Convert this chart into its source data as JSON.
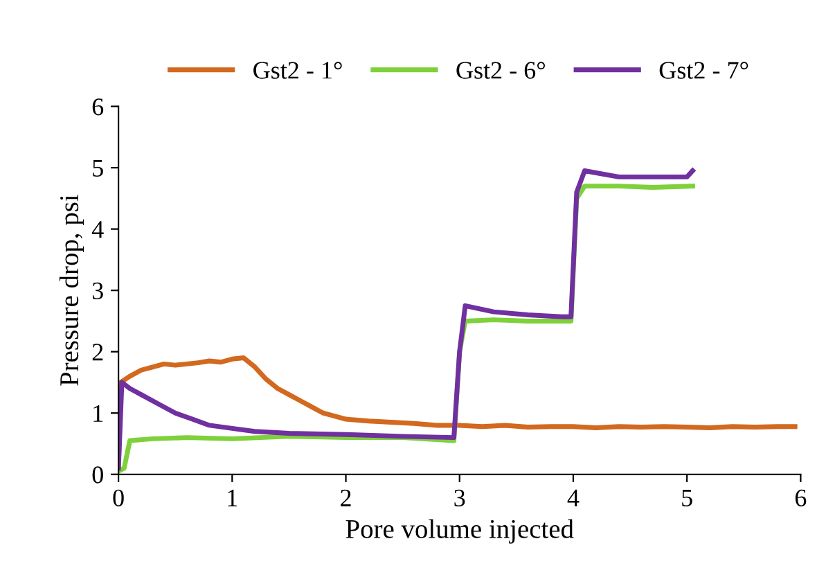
{
  "chart_data": {
    "type": "line",
    "xlabel": "Pore volume injected",
    "ylabel": "Pressure drop, psi",
    "xlim": [
      0,
      6
    ],
    "ylim": [
      0,
      6
    ],
    "xticks": [
      0,
      1,
      2,
      3,
      4,
      5,
      6
    ],
    "yticks": [
      0,
      1,
      2,
      3,
      4,
      5,
      6
    ],
    "grid": false,
    "legend": "top",
    "marker": "none",
    "line_style": "solid",
    "series": [
      {
        "name": "Gst2 - 1°",
        "color": "#d2691e",
        "x": [
          0,
          0.02,
          0.1,
          0.2,
          0.3,
          0.4,
          0.5,
          0.6,
          0.7,
          0.8,
          0.9,
          1.0,
          1.1,
          1.2,
          1.3,
          1.4,
          1.5,
          1.6,
          1.7,
          1.8,
          1.9,
          2.0,
          2.2,
          2.4,
          2.6,
          2.8,
          3.0,
          3.2,
          3.4,
          3.6,
          3.8,
          4.0,
          4.2,
          4.4,
          4.6,
          4.8,
          5.0,
          5.2,
          5.4,
          5.6,
          5.8,
          5.95
        ],
        "values": [
          0.1,
          1.5,
          1.6,
          1.7,
          1.75,
          1.8,
          1.78,
          1.8,
          1.82,
          1.85,
          1.83,
          1.88,
          1.9,
          1.75,
          1.55,
          1.4,
          1.3,
          1.2,
          1.1,
          1.0,
          0.95,
          0.9,
          0.87,
          0.85,
          0.83,
          0.8,
          0.8,
          0.78,
          0.8,
          0.77,
          0.78,
          0.78,
          0.76,
          0.78,
          0.77,
          0.78,
          0.77,
          0.76,
          0.78,
          0.77,
          0.78,
          0.78
        ]
      },
      {
        "name": "Gst2 - 6°",
        "color": "#7ed13b",
        "x": [
          0,
          0.05,
          0.1,
          0.3,
          0.6,
          1.0,
          1.5,
          2.0,
          2.5,
          2.95,
          3.0,
          3.05,
          3.3,
          3.6,
          3.9,
          3.98,
          4.03,
          4.1,
          4.4,
          4.7,
          5.05
        ],
        "values": [
          0.05,
          0.1,
          0.55,
          0.58,
          0.6,
          0.58,
          0.62,
          0.6,
          0.6,
          0.55,
          2.0,
          2.5,
          2.52,
          2.5,
          2.5,
          2.5,
          4.5,
          4.7,
          4.7,
          4.68,
          4.7
        ]
      },
      {
        "name": "Gst2 - 7°",
        "color": "#7030a0",
        "x": [
          0,
          0.03,
          0.1,
          0.2,
          0.35,
          0.5,
          0.65,
          0.8,
          1.0,
          1.2,
          1.5,
          2.0,
          2.5,
          2.95,
          3.0,
          3.05,
          3.3,
          3.6,
          3.9,
          3.98,
          4.03,
          4.1,
          4.4,
          4.7,
          5.0,
          5.05
        ],
        "values": [
          0.1,
          1.5,
          1.4,
          1.3,
          1.15,
          1.0,
          0.9,
          0.8,
          0.75,
          0.7,
          0.67,
          0.65,
          0.62,
          0.6,
          2.0,
          2.75,
          2.65,
          2.6,
          2.57,
          2.57,
          4.6,
          4.95,
          4.85,
          4.85,
          4.85,
          4.95
        ]
      }
    ]
  }
}
